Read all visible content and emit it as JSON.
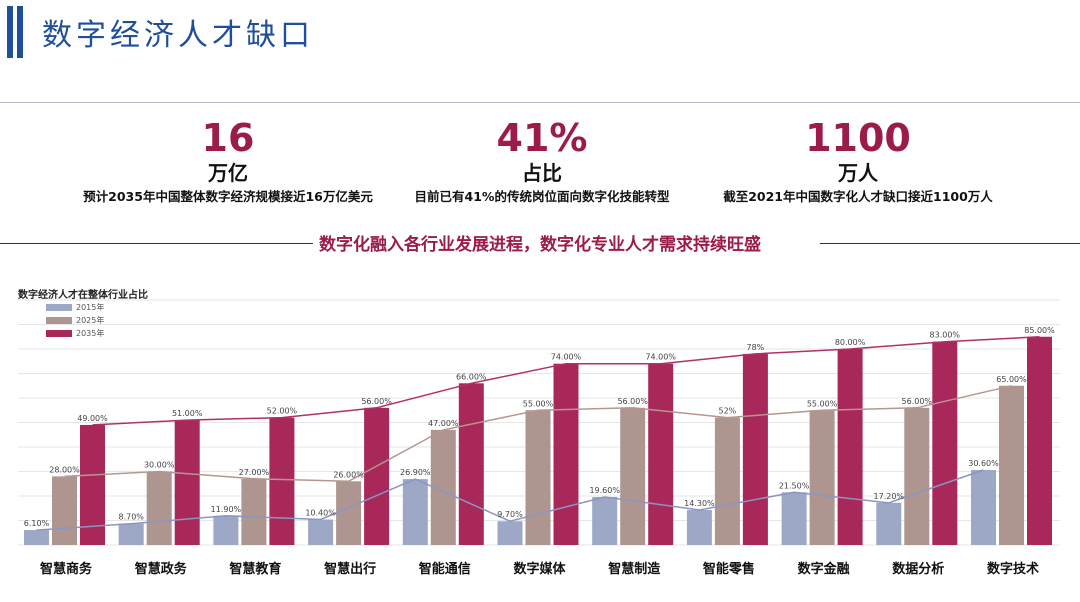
{
  "header": {
    "title": "数字经济人才缺口"
  },
  "stats": [
    {
      "number": "16",
      "unit": "万亿",
      "desc": "预计2035年中国整体数字经济规模接近16万亿美元"
    },
    {
      "number": "41%",
      "unit": "占比",
      "desc": "目前已有41%的传统岗位面向数字化技能转型"
    },
    {
      "number": "1100",
      "unit": "万人",
      "desc": "截至2021年中国数字化人才缺口接近1100万人"
    }
  ],
  "banner": "数字化融入各行业发展进程，数字化专业人才需求持续旺盛",
  "colors": {
    "s2015": "#9da7c6",
    "s2025": "#ae9590",
    "s2035": "#a8285a",
    "title": "#1f4e9c",
    "accent": "#9b1b4a"
  },
  "chart_data": {
    "type": "bar",
    "title": "数字经济人才在整体行业占比",
    "categories": [
      "智慧商务",
      "智慧政务",
      "智慧教育",
      "智慧出行",
      "智能通信",
      "数字媒体",
      "智慧制造",
      "智能零售",
      "数字金融",
      "数据分析",
      "数字技术"
    ],
    "series": [
      {
        "name": "2015年",
        "values": [
          6.1,
          8.7,
          11.9,
          10.4,
          26.9,
          9.7,
          19.6,
          14.3,
          21.5,
          17.2,
          30.6
        ],
        "labels": [
          "6.10%",
          "8.70%",
          "11.90%",
          "10.40%",
          "26.90%",
          "9.70%",
          "19.60%",
          "14.30%",
          "21.50%",
          "17.20%",
          "30.60%"
        ]
      },
      {
        "name": "2025年",
        "values": [
          28,
          30,
          27,
          26,
          47,
          55,
          56,
          52,
          55,
          56,
          65
        ],
        "labels": [
          "28.00%",
          "30.00%",
          "27.00%",
          "26.00%",
          "47.00%",
          "55.00%",
          "56.00%",
          "52%",
          "55.00%",
          "56.00%",
          "65.00%"
        ]
      },
      {
        "name": "2035年",
        "values": [
          49,
          51,
          52,
          56,
          66,
          74,
          74,
          78,
          80,
          83,
          85
        ],
        "labels": [
          "49.00%",
          "51.00%",
          "52.00%",
          "56.00%",
          "66.00%",
          "74.00%",
          "74.00%",
          "78%",
          "80.00%",
          "83.00%",
          "85.00%"
        ]
      }
    ],
    "ylim": [
      0,
      100
    ],
    "grid": true,
    "legend": "top-left"
  }
}
